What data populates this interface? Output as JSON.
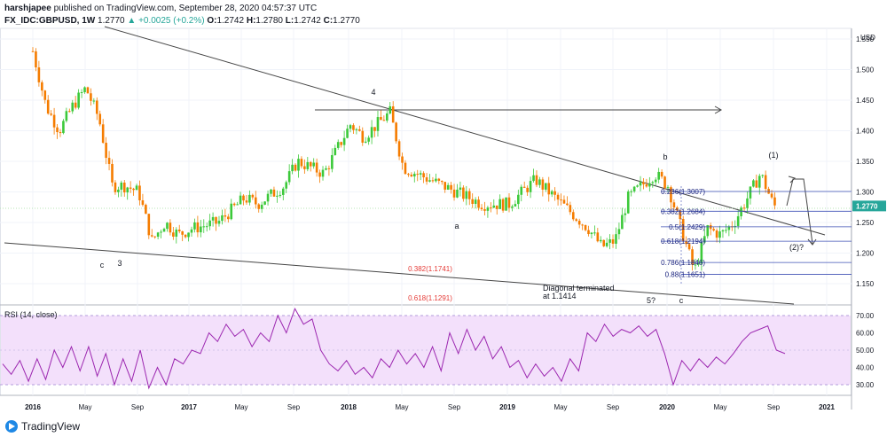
{
  "header": {
    "author": "harshjapee",
    "published": "published on TradingView.com, September 28, 2020 04:57:37 UTC",
    "symbol": "FX_IDC:GBPUSD, 1W",
    "last": "1.2770",
    "change": "▲ +0.0025 (+0.2%)",
    "o_label": "O:",
    "o_value": "1.2742",
    "h_label": "H:",
    "h_value": "1.2780",
    "l_label": "L:",
    "l_value": "1.2742",
    "c_label": "C:",
    "c_value": "1.2770"
  },
  "brand": "TradingView",
  "colors": {
    "up": "#26a69a",
    "up_candle": "#3cc93a",
    "down": "#f57c00",
    "fib_line": "#3f51b5",
    "fib_text": "#1a237e",
    "red_text": "#e53935",
    "rsi_line": "#9c27b0",
    "rsi_band": "#f3e0fb",
    "price_tag": "#26a69a"
  },
  "chart_data": [
    {
      "type": "candlestick",
      "title": "FX_IDC:GBPUSD, 1W",
      "currency_label": "USD",
      "y_ticks": [
        "1.550",
        "1.500",
        "1.450",
        "1.400",
        "1.350",
        "1.300",
        "1.250",
        "1.200",
        "1.150"
      ],
      "ylim": [
        1.13,
        1.56
      ],
      "last_price_tag": "1.2770",
      "x_ticks": [
        "2016",
        "May",
        "Sep",
        "2017",
        "May",
        "Sep",
        "2018",
        "May",
        "Sep",
        "2019",
        "May",
        "Sep",
        "2020",
        "May",
        "Sep",
        "2021"
      ],
      "price_path": [
        {
          "date": "2016-01",
          "value": 1.53
        },
        {
          "date": "2016-02",
          "value": 1.44
        },
        {
          "date": "2016-03",
          "value": 1.4
        },
        {
          "date": "2016-04",
          "value": 1.44
        },
        {
          "date": "2016-05",
          "value": 1.47
        },
        {
          "date": "2016-06",
          "value": 1.42
        },
        {
          "date": "2016-07",
          "value": 1.31
        },
        {
          "date": "2016-08",
          "value": 1.31
        },
        {
          "date": "2016-09",
          "value": 1.3
        },
        {
          "date": "2016-10",
          "value": 1.22
        },
        {
          "date": "2016-11",
          "value": 1.25
        },
        {
          "date": "2016-12",
          "value": 1.23
        },
        {
          "date": "2017-01",
          "value": 1.24
        },
        {
          "date": "2017-03",
          "value": 1.25
        },
        {
          "date": "2017-05",
          "value": 1.29
        },
        {
          "date": "2017-06",
          "value": 1.28
        },
        {
          "date": "2017-08",
          "value": 1.31
        },
        {
          "date": "2017-09",
          "value": 1.35
        },
        {
          "date": "2017-11",
          "value": 1.33
        },
        {
          "date": "2018-01",
          "value": 1.41
        },
        {
          "date": "2018-02",
          "value": 1.39
        },
        {
          "date": "2018-04",
          "value": 1.43
        },
        {
          "date": "2018-05",
          "value": 1.34
        },
        {
          "date": "2018-07",
          "value": 1.32
        },
        {
          "date": "2018-09",
          "value": 1.3
        },
        {
          "date": "2018-11",
          "value": 1.28
        },
        {
          "date": "2019-01",
          "value": 1.28
        },
        {
          "date": "2019-03",
          "value": 1.32
        },
        {
          "date": "2019-05",
          "value": 1.28
        },
        {
          "date": "2019-07",
          "value": 1.24
        },
        {
          "date": "2019-08",
          "value": 1.21
        },
        {
          "date": "2019-09",
          "value": 1.22
        },
        {
          "date": "2019-10",
          "value": 1.29
        },
        {
          "date": "2019-12",
          "value": 1.33
        },
        {
          "date": "2020-01",
          "value": 1.31
        },
        {
          "date": "2020-03",
          "value": 1.17
        },
        {
          "date": "2020-04",
          "value": 1.24
        },
        {
          "date": "2020-05",
          "value": 1.23
        },
        {
          "date": "2020-06",
          "value": 1.25
        },
        {
          "date": "2020-07",
          "value": 1.29
        },
        {
          "date": "2020-08",
          "value": 1.33
        },
        {
          "date": "2020-09",
          "value": 1.277
        }
      ],
      "fib_levels": [
        {
          "label": "0.236(1.3007)",
          "value": 1.3007
        },
        {
          "label": "0.382(1.2684)",
          "value": 1.2684
        },
        {
          "label": "0.5(1.2429)",
          "value": 1.2429
        },
        {
          "label": "0.618(1.2194)",
          "value": 1.2194
        },
        {
          "label": "0.786(1.1846)",
          "value": 1.1846
        },
        {
          "label": "0.88(1.1651)",
          "value": 1.1651
        }
      ],
      "red_levels": [
        "0.382(1.1741)",
        "0.618(1.1291)"
      ],
      "annotations": [
        "4",
        "c",
        "3",
        "a",
        "b",
        "(1)",
        "(2)?",
        "5?",
        "c",
        "Diagonal terminated",
        "at 1.1414"
      ]
    },
    {
      "type": "line",
      "title": "RSI (14, close)",
      "y_ticks": [
        "70.00",
        "60.00",
        "50.00",
        "40.00",
        "30.00"
      ],
      "ylim": [
        20,
        78
      ],
      "band": [
        30,
        70
      ],
      "values": [
        42,
        36,
        44,
        32,
        45,
        33,
        50,
        40,
        52,
        38,
        52,
        35,
        48,
        30,
        45,
        32,
        50,
        28,
        40,
        30,
        45,
        42,
        50,
        48,
        60,
        55,
        65,
        58,
        62,
        52,
        60,
        55,
        70,
        60,
        74,
        65,
        68,
        50,
        42,
        38,
        44,
        36,
        40,
        34,
        45,
        40,
        50,
        42,
        48,
        40,
        52,
        38,
        60,
        48,
        62,
        50,
        58,
        45,
        52,
        40,
        44,
        34,
        42,
        35,
        40,
        32,
        45,
        38,
        60,
        55,
        65,
        58,
        62,
        60,
        64,
        58,
        62,
        48,
        30,
        44,
        38,
        45,
        40,
        46,
        42,
        48,
        55,
        60,
        62,
        64,
        50,
        48
      ]
    }
  ]
}
